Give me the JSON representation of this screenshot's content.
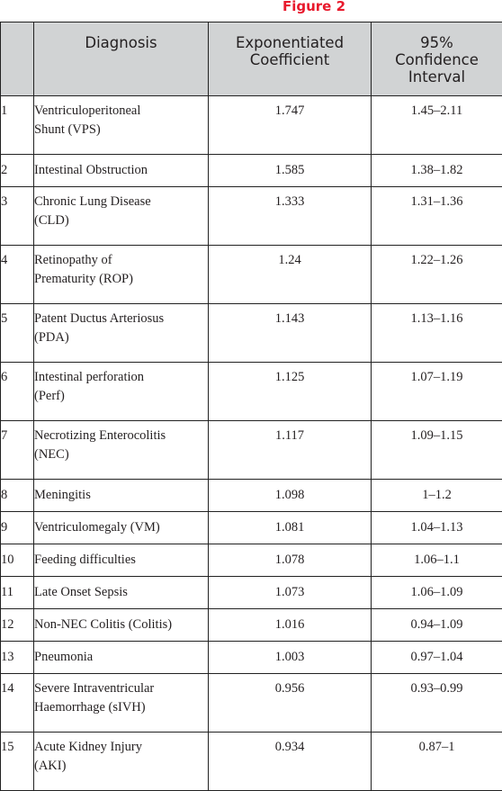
{
  "figure_label": "Figure 2",
  "headers": {
    "index": "",
    "diagnosis": "Diagnosis",
    "coefficient_line1": "Exponentiated",
    "coefficient_line2": "Coefficient",
    "ci_line1": "95%",
    "ci_line2": "Confidence",
    "ci_line3": "Interval"
  },
  "rows": [
    {
      "n": "1",
      "diag1": "Ventriculoperitoneal",
      "diag2": "Shunt (VPS)",
      "coef": "1.747",
      "ci": "1.45–2.11"
    },
    {
      "n": "2",
      "diag1": "Intestinal Obstruction",
      "diag2": "",
      "coef": "1.585",
      "ci": "1.38–1.82"
    },
    {
      "n": "3",
      "diag1": "Chronic Lung Disease",
      "diag2": "(CLD)",
      "coef": "1.333",
      "ci": "1.31–1.36"
    },
    {
      "n": "4",
      "diag1": "Retinopathy of",
      "diag2": "Prematurity (ROP)",
      "coef": "1.24",
      "ci": "1.22–1.26"
    },
    {
      "n": "5",
      "diag1": "Patent Ductus Arteriosus",
      "diag2": "(PDA)",
      "coef": "1.143",
      "ci": "1.13–1.16"
    },
    {
      "n": "6",
      "diag1": "Intestinal perforation",
      "diag2": "(Perf)",
      "coef": "1.125",
      "ci": "1.07–1.19"
    },
    {
      "n": "7",
      "diag1": "Necrotizing Enterocolitis",
      "diag2": "(NEC)",
      "coef": "1.117",
      "ci": "1.09–1.15"
    },
    {
      "n": "8",
      "diag1": "Meningitis",
      "diag2": "",
      "coef": "1.098",
      "ci": "1–1.2"
    },
    {
      "n": "9",
      "diag1": "Ventriculomegaly (VM)",
      "diag2": "",
      "coef": "1.081",
      "ci": "1.04–1.13"
    },
    {
      "n": "10",
      "diag1": "Feeding difficulties",
      "diag2": "",
      "coef": "1.078",
      "ci": "1.06–1.1"
    },
    {
      "n": "11",
      "diag1": "Late Onset Sepsis",
      "diag2": "",
      "coef": "1.073",
      "ci": "1.06–1.09"
    },
    {
      "n": "12",
      "diag1": "Non-NEC Colitis (Colitis)",
      "diag2": "",
      "coef": "1.016",
      "ci": "0.94–1.09"
    },
    {
      "n": "13",
      "diag1": "Pneumonia",
      "diag2": "",
      "coef": "1.003",
      "ci": "0.97–1.04"
    },
    {
      "n": "14",
      "diag1": "Severe Intraventricular",
      "diag2": "Haemorrhage (sIVH)",
      "coef": "0.956",
      "ci": "0.93–0.99"
    },
    {
      "n": "15",
      "diag1": "Acute Kidney Injury",
      "diag2": "(AKI)",
      "coef": "0.934",
      "ci": "0.87–1"
    }
  ]
}
